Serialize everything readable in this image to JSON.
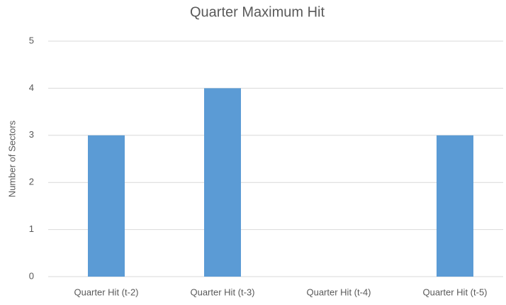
{
  "chart_data": {
    "type": "bar",
    "title": "Quarter Maximum Hit",
    "y_label": "Number of Sectors",
    "categories": [
      "Quarter Hit (t-2)",
      "Quarter Hit (t-3)",
      "Quarter Hit (t-4)",
      "Quarter Hit (t-5)"
    ],
    "values": [
      3,
      4,
      0,
      3
    ],
    "color": "#5b9bd5",
    "ylim": [
      0,
      5
    ],
    "yticks": [
      0,
      1,
      2,
      3,
      4,
      5
    ],
    "grid": true
  }
}
